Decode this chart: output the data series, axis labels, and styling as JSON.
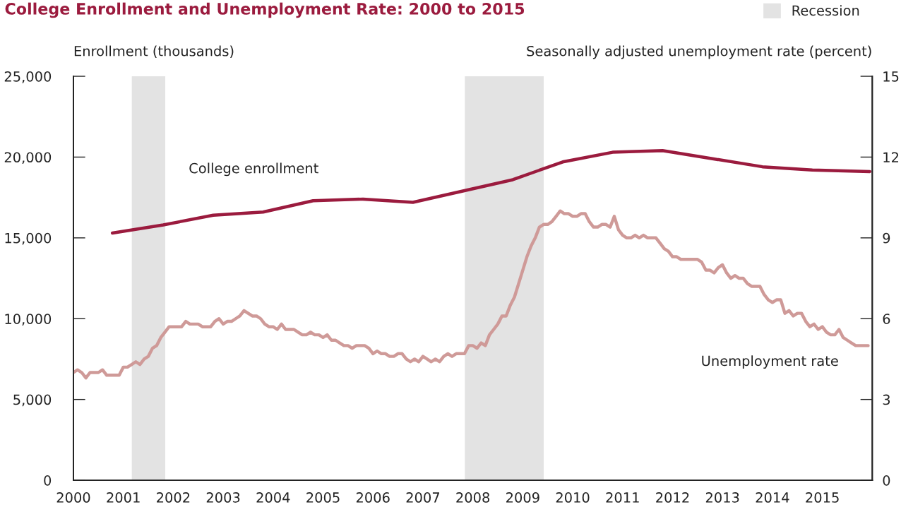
{
  "chart_data": {
    "type": "line",
    "title": "College Enrollment and Unemployment Rate: 2000 to 2015",
    "ylabel": "Enrollment (thousands)",
    "y2label": "Seasonally adjusted unemployment rate (percent)",
    "xlim": [
      2000,
      2016
    ],
    "xticks": [
      2000,
      2001,
      2002,
      2003,
      2004,
      2005,
      2006,
      2007,
      2008,
      2009,
      2010,
      2011,
      2012,
      2013,
      2014,
      2015
    ],
    "ylim": [
      0,
      25000
    ],
    "yticks": [
      0,
      {
        "value": 5000,
        "label": "5,000"
      },
      {
        "value": 10000,
        "label": "10,000"
      },
      {
        "value": 15000,
        "label": "15,000"
      },
      {
        "value": 20000,
        "label": "20,000"
      },
      {
        "value": 25000,
        "label": "25,000"
      }
    ],
    "y2lim": [
      0,
      15
    ],
    "y2ticks": [
      0,
      3,
      6,
      9,
      12,
      15
    ],
    "grid": false,
    "legend": "top right",
    "line_style": "solid",
    "marker": "none",
    "bands": [
      {
        "axis": "x",
        "from": 2001.17,
        "to": 2001.84,
        "label": "Recession",
        "color": "#e3e3e3"
      },
      {
        "axis": "x",
        "from": 2007.84,
        "to": 2009.42,
        "color": "#e3e3e3"
      }
    ],
    "series": [
      {
        "name": "College enrollment",
        "color": "#9b1b3e",
        "x": [
          2000.78,
          2001.8,
          2002.8,
          2003.8,
          2004.8,
          2005.8,
          2006.8,
          2007.8,
          2008.8,
          2009.8,
          2010.8,
          2011.8,
          2012.8,
          2013.8,
          2014.8,
          2015.95
        ],
        "values": [
          15300,
          15800,
          16400,
          16600,
          17300,
          17400,
          17200,
          17900,
          18600,
          19700,
          20300,
          20400,
          19900,
          19400,
          19200,
          19100
        ]
      },
      {
        "name": "Unemployment rate",
        "color": "#cf9a98",
        "axis": "y2",
        "x": [
          2000.0,
          2000.083,
          2000.167,
          2000.25,
          2000.333,
          2000.417,
          2000.5,
          2000.583,
          2000.667,
          2000.75,
          2000.833,
          2000.917,
          2001.0,
          2001.083,
          2001.167,
          2001.25,
          2001.333,
          2001.417,
          2001.5,
          2001.583,
          2001.667,
          2001.75,
          2001.833,
          2001.917,
          2002.0,
          2002.083,
          2002.167,
          2002.25,
          2002.333,
          2002.417,
          2002.5,
          2002.583,
          2002.667,
          2002.75,
          2002.833,
          2002.917,
          2003.0,
          2003.083,
          2003.167,
          2003.25,
          2003.333,
          2003.417,
          2003.5,
          2003.583,
          2003.667,
          2003.75,
          2003.833,
          2003.917,
          2004.0,
          2004.083,
          2004.167,
          2004.25,
          2004.333,
          2004.417,
          2004.5,
          2004.583,
          2004.667,
          2004.75,
          2004.833,
          2004.917,
          2005.0,
          2005.083,
          2005.167,
          2005.25,
          2005.333,
          2005.417,
          2005.5,
          2005.583,
          2005.667,
          2005.75,
          2005.833,
          2005.917,
          2006.0,
          2006.083,
          2006.167,
          2006.25,
          2006.333,
          2006.417,
          2006.5,
          2006.583,
          2006.667,
          2006.75,
          2006.833,
          2006.917,
          2007.0,
          2007.083,
          2007.167,
          2007.25,
          2007.333,
          2007.417,
          2007.5,
          2007.583,
          2007.667,
          2007.75,
          2007.833,
          2007.917,
          2008.0,
          2008.083,
          2008.167,
          2008.25,
          2008.333,
          2008.417,
          2008.5,
          2008.583,
          2008.667,
          2008.75,
          2008.833,
          2008.917,
          2009.0,
          2009.083,
          2009.167,
          2009.25,
          2009.333,
          2009.417,
          2009.5,
          2009.583,
          2009.667,
          2009.75,
          2009.833,
          2009.917,
          2010.0,
          2010.083,
          2010.167,
          2010.25,
          2010.333,
          2010.417,
          2010.5,
          2010.583,
          2010.667,
          2010.75,
          2010.833,
          2010.917,
          2011.0,
          2011.083,
          2011.167,
          2011.25,
          2011.333,
          2011.417,
          2011.5,
          2011.583,
          2011.667,
          2011.75,
          2011.833,
          2011.917,
          2012.0,
          2012.083,
          2012.167,
          2012.25,
          2012.333,
          2012.417,
          2012.5,
          2012.583,
          2012.667,
          2012.75,
          2012.833,
          2012.917,
          2013.0,
          2013.083,
          2013.167,
          2013.25,
          2013.333,
          2013.417,
          2013.5,
          2013.583,
          2013.667,
          2013.75,
          2013.833,
          2013.917,
          2014.0,
          2014.083,
          2014.167,
          2014.25,
          2014.333,
          2014.417,
          2014.5,
          2014.583,
          2014.667,
          2014.75,
          2014.833,
          2014.917,
          2015.0,
          2015.083,
          2015.167,
          2015.25,
          2015.333,
          2015.417,
          2015.5,
          2015.583,
          2015.667,
          2015.75,
          2015.833,
          2015.917
        ],
        "values": [
          4.0,
          4.1,
          4.0,
          3.8,
          4.0,
          4.0,
          4.0,
          4.1,
          3.9,
          3.9,
          3.9,
          3.9,
          4.2,
          4.2,
          4.3,
          4.4,
          4.3,
          4.5,
          4.6,
          4.9,
          5.0,
          5.3,
          5.5,
          5.7,
          5.7,
          5.7,
          5.7,
          5.9,
          5.8,
          5.8,
          5.8,
          5.7,
          5.7,
          5.7,
          5.9,
          6.0,
          5.8,
          5.9,
          5.9,
          6.0,
          6.1,
          6.3,
          6.2,
          6.1,
          6.1,
          6.0,
          5.8,
          5.7,
          5.7,
          5.6,
          5.8,
          5.6,
          5.6,
          5.6,
          5.5,
          5.4,
          5.4,
          5.5,
          5.4,
          5.4,
          5.3,
          5.4,
          5.2,
          5.2,
          5.1,
          5.0,
          5.0,
          4.9,
          5.0,
          5.0,
          5.0,
          4.9,
          4.7,
          4.8,
          4.7,
          4.7,
          4.6,
          4.6,
          4.7,
          4.7,
          4.5,
          4.4,
          4.5,
          4.4,
          4.6,
          4.5,
          4.4,
          4.5,
          4.4,
          4.6,
          4.7,
          4.6,
          4.7,
          4.7,
          4.7,
          5.0,
          5.0,
          4.9,
          5.1,
          5.0,
          5.4,
          5.6,
          5.8,
          6.1,
          6.1,
          6.5,
          6.8,
          7.3,
          7.8,
          8.3,
          8.7,
          9.0,
          9.4,
          9.5,
          9.5,
          9.6,
          9.8,
          10.0,
          9.9,
          9.9,
          9.8,
          9.8,
          9.9,
          9.9,
          9.6,
          9.4,
          9.4,
          9.5,
          9.5,
          9.4,
          9.8,
          9.3,
          9.1,
          9.0,
          9.0,
          9.1,
          9.0,
          9.1,
          9.0,
          9.0,
          9.0,
          8.8,
          8.6,
          8.5,
          8.3,
          8.3,
          8.2,
          8.2,
          8.2,
          8.2,
          8.2,
          8.1,
          7.8,
          7.8,
          7.7,
          7.9,
          8.0,
          7.7,
          7.5,
          7.6,
          7.5,
          7.5,
          7.3,
          7.2,
          7.2,
          7.2,
          6.9,
          6.7,
          6.6,
          6.7,
          6.7,
          6.2,
          6.3,
          6.1,
          6.2,
          6.2,
          5.9,
          5.7,
          5.8,
          5.6,
          5.7,
          5.5,
          5.4,
          5.4,
          5.6,
          5.3,
          5.2,
          5.1,
          5.0,
          5.0,
          5.0,
          5.0
        ]
      }
    ]
  }
}
